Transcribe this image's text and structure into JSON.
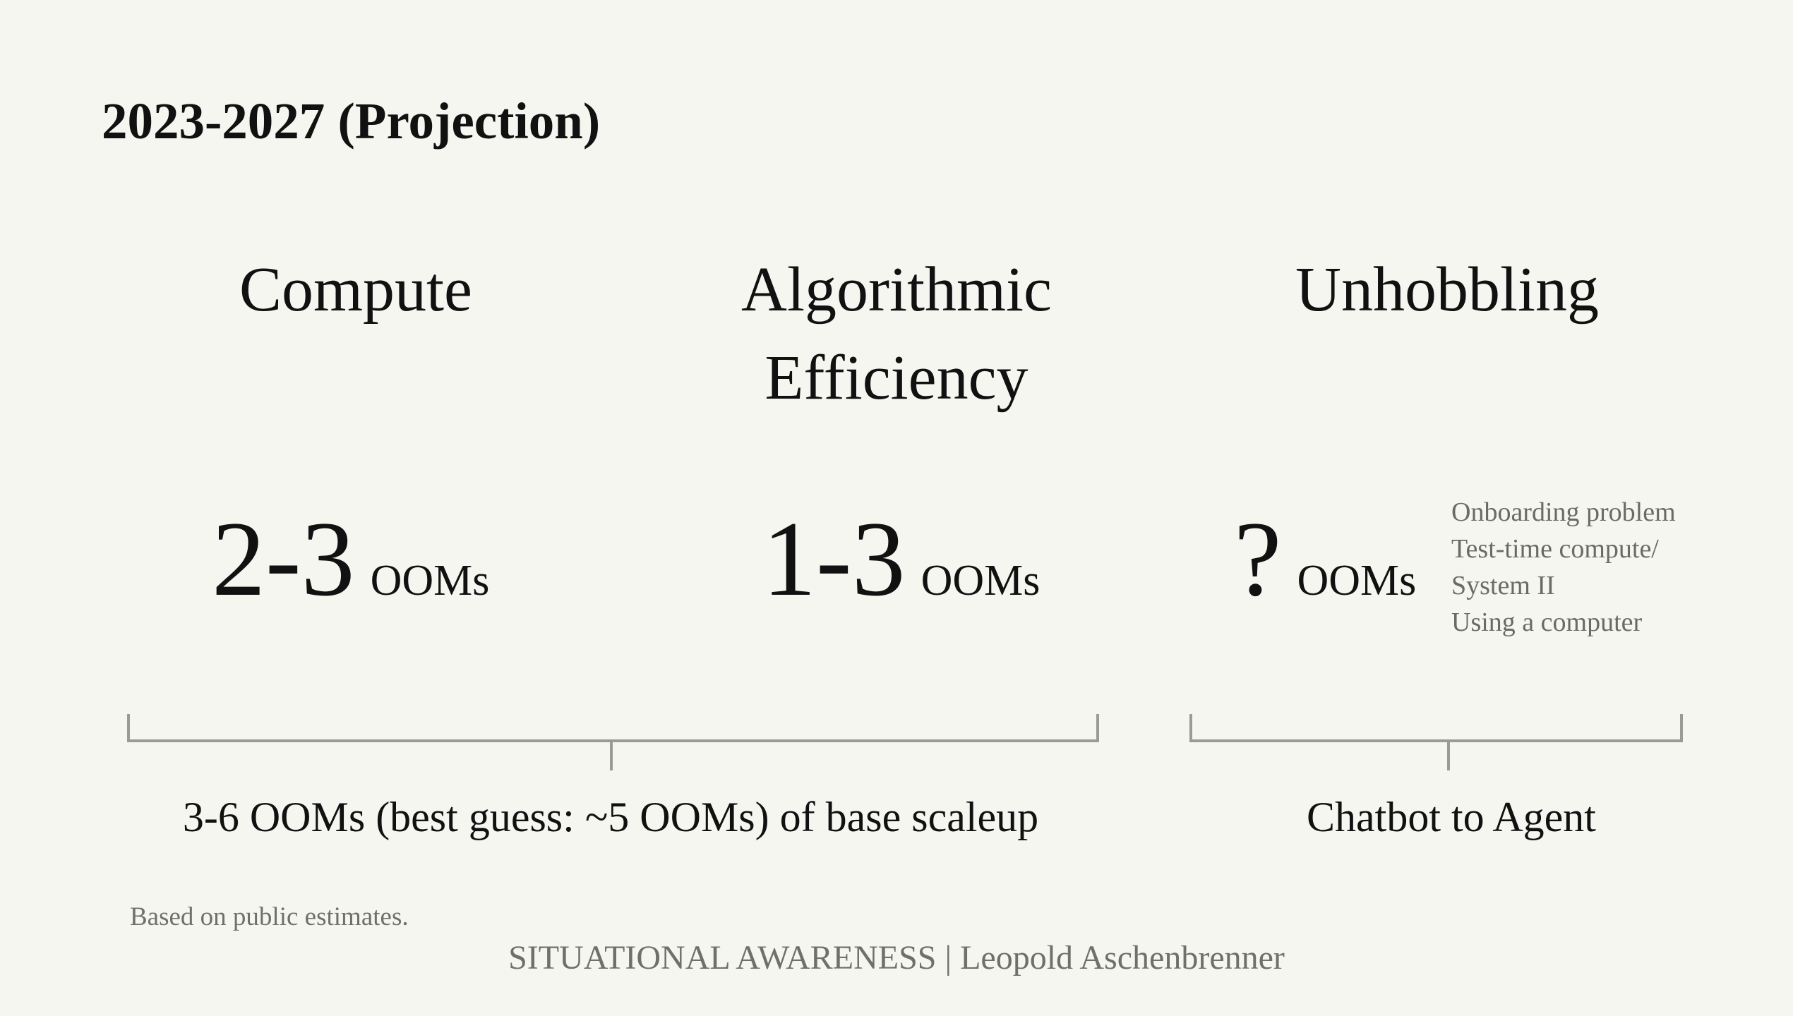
{
  "title": "2023-2027 (Projection)",
  "columns": [
    {
      "heading": "Compute",
      "ooms_value": "2-3",
      "ooms_unit": "OOMs"
    },
    {
      "heading": "Algorithmic Efficiency",
      "ooms_value": "1-3",
      "ooms_unit": "OOMs"
    },
    {
      "heading": "Unhobbling",
      "ooms_value": "?",
      "ooms_unit": "OOMs",
      "examples": [
        "Onboarding problem",
        "Test-time compute/",
        "System II",
        "Using a computer"
      ]
    }
  ],
  "brackets": [
    {
      "label": "3-6 OOMs (best guess: ~5 OOMs) of base scaleup"
    },
    {
      "label": "Chatbot to Agent"
    }
  ],
  "footnote": "Based on public estimates.",
  "credit": "SITUATIONAL AWARENESS | Leopold Aschenbrenner",
  "colors": {
    "background": "#f6f6f1",
    "text": "#111111",
    "muted_text": "#6f6f6b",
    "bracket_line": "#9a9a96"
  }
}
